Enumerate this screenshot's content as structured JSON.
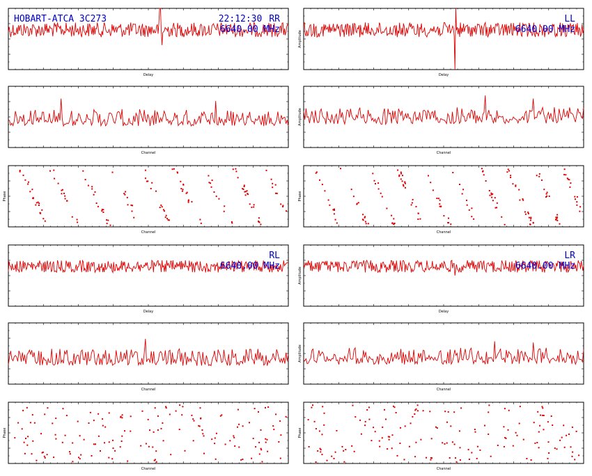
{
  "colors": {
    "trace": "#dd0000",
    "annotation": "#0000cc",
    "axis": "#000000",
    "background": "#ffffff"
  },
  "panels": [
    {
      "id": "rr",
      "annotations": {
        "source": "HOBART-ATCA 3C273",
        "time": "22:12:30",
        "pol": "RR",
        "freq": "6640.00 MHz"
      },
      "charts": [
        {
          "type": "line",
          "role": "delay",
          "xlabel": "Delay",
          "ylabel": "",
          "ylim": [
            -2,
            6
          ],
          "baseline": 0.35,
          "noise": 0.12,
          "n": 360,
          "spikes": [
            [
              0.54,
              -1.4,
              -1.2
            ],
            [
              0.545,
              0.35,
              0.6
            ]
          ]
        },
        {
          "type": "line",
          "role": "channel",
          "xlabel": "Channel",
          "ylabel": "",
          "ylim": [
            0,
            5
          ],
          "baseline": 0.35,
          "noise": 0.22,
          "n": 240,
          "spikes": [
            [
              0.19,
              0.8
            ],
            [
              0.74,
              0.76
            ]
          ]
        },
        {
          "type": "scatter",
          "role": "phase",
          "xlabel": "Channel",
          "ylabel": "Phase",
          "ylim": [
            -200,
            200
          ],
          "n": 150,
          "stripes": 9
        }
      ]
    },
    {
      "id": "ll",
      "annotations": {
        "source": "",
        "time": "",
        "pol": "LL",
        "freq": "6640.00 MHz"
      },
      "charts": [
        {
          "type": "line",
          "role": "delay",
          "xlabel": "Delay",
          "ylabel": "Amplitude",
          "ylim": [
            -2,
            6
          ],
          "baseline": 0.35,
          "noise": 0.12,
          "n": 360,
          "spikes": [
            [
              0.54,
              1.2,
              -1.1
            ]
          ]
        },
        {
          "type": "line",
          "role": "channel",
          "xlabel": "Channel",
          "ylabel": "Amplitude",
          "ylim": [
            0,
            5
          ],
          "baseline": 0.38,
          "noise": 0.22,
          "n": 240,
          "spikes": [
            [
              0.65,
              0.85
            ],
            [
              0.82,
              0.8
            ]
          ]
        },
        {
          "type": "scatter",
          "role": "phase",
          "xlabel": "Channel",
          "ylabel": "Phase",
          "ylim": [
            -200,
            200
          ],
          "n": 170,
          "stripes": 10
        }
      ]
    },
    {
      "id": "rl",
      "annotations": {
        "source": "",
        "time": "",
        "pol": "RL",
        "freq": "6640.00 MHz"
      },
      "charts": [
        {
          "type": "line",
          "role": "delay",
          "xlabel": "Delay",
          "ylabel": "",
          "ylim": [
            -2,
            6
          ],
          "baseline": 0.35,
          "noise": 0.1,
          "n": 360,
          "spikes": []
        },
        {
          "type": "line",
          "role": "channel",
          "xlabel": "Channel",
          "ylabel": "",
          "ylim": [
            0,
            5
          ],
          "baseline": 0.3,
          "noise": 0.22,
          "n": 240,
          "spikes": [
            [
              0.49,
              0.74
            ]
          ]
        },
        {
          "type": "scatter",
          "role": "phase",
          "xlabel": "Channel",
          "ylabel": "Phase",
          "ylim": [
            -200,
            200
          ],
          "n": 160,
          "stripes": 0
        }
      ]
    },
    {
      "id": "lr",
      "annotations": {
        "source": "",
        "time": "",
        "pol": "LR",
        "freq": "6640.00 MHz"
      },
      "charts": [
        {
          "type": "line",
          "role": "delay",
          "xlabel": "Delay",
          "ylabel": "Amplitude",
          "ylim": [
            -2,
            6
          ],
          "baseline": 0.35,
          "noise": 0.1,
          "n": 360,
          "spikes": [
            [
              0.54,
              0.5
            ]
          ]
        },
        {
          "type": "line",
          "role": "channel",
          "xlabel": "Channel",
          "ylabel": "Amplitude",
          "ylim": [
            0,
            5
          ],
          "baseline": 0.32,
          "noise": 0.22,
          "n": 240,
          "spikes": [
            [
              0.68,
              0.7
            ],
            [
              0.82,
              0.68
            ]
          ]
        },
        {
          "type": "scatter",
          "role": "phase",
          "xlabel": "Channel",
          "ylabel": "Phase",
          "ylim": [
            -200,
            200
          ],
          "n": 160,
          "stripes": 0
        }
      ]
    }
  ]
}
